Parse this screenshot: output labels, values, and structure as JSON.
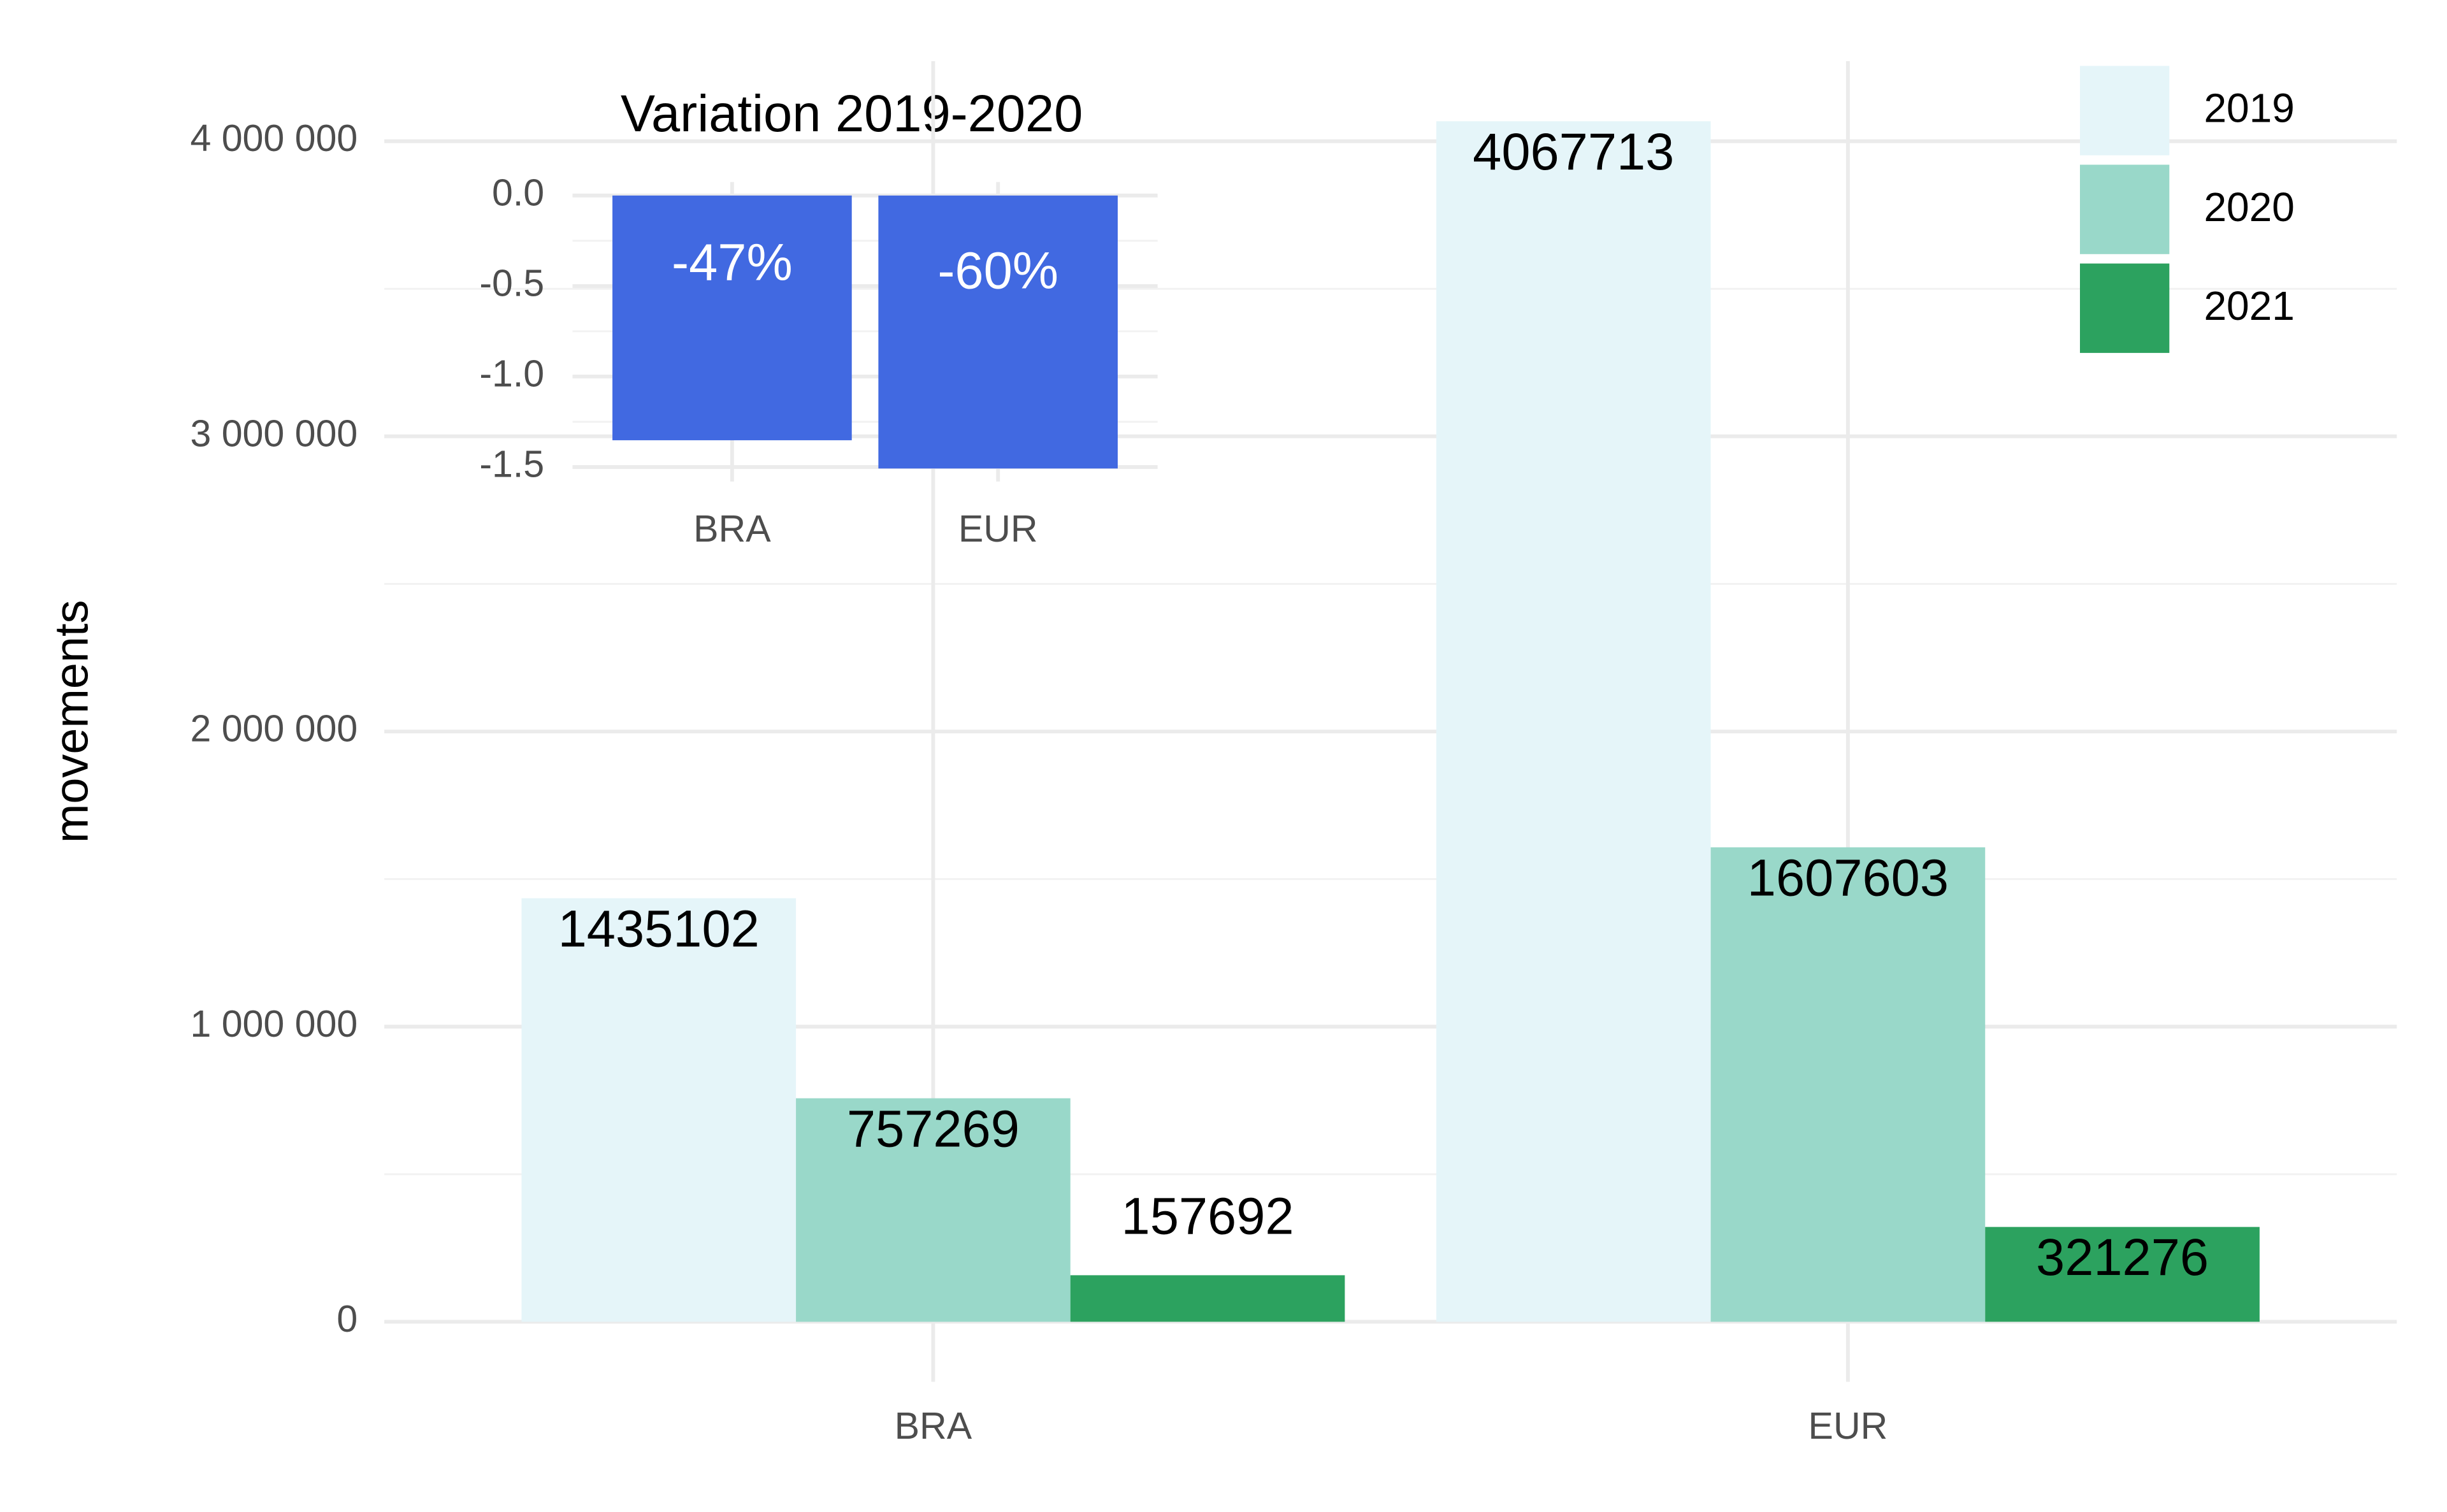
{
  "chart_data": [
    {
      "type": "bar",
      "y_label": "movements",
      "categories": [
        "BRA",
        "EUR"
      ],
      "series": [
        {
          "name": "2019",
          "color": "#e5f5f9",
          "values": [
            1435102,
            4067713
          ]
        },
        {
          "name": "2020",
          "color": "#99d8c9",
          "values": [
            757269,
            1607603
          ]
        },
        {
          "name": "2021",
          "color": "#2ca25f",
          "values": [
            157692,
            321276
          ]
        }
      ],
      "ylim": [
        -203386,
        4271099
      ],
      "yticks": [
        0,
        {
          "value": 1000000,
          "label": "1 000 000"
        },
        {
          "value": 2000000,
          "label": "2 000 000"
        },
        {
          "value": 3000000,
          "label": "3 000 000"
        },
        {
          "value": 4000000,
          "label": "4 000 000"
        }
      ],
      "minor_yticks": [
        500000,
        1500000,
        2500000,
        3500000
      ],
      "grid": true,
      "legend": "top-right"
    },
    {
      "type": "bar",
      "title": "Variation 2019-2020",
      "categories": [
        "BRA",
        "EUR"
      ],
      "values": [
        -1.352,
        -1.508
      ],
      "annotations": [
        "-47%",
        "-60%"
      ],
      "color": "#4169e1",
      "ylim": [
        -1.58,
        0.075
      ],
      "yticks": [
        {
          "value": 0,
          "label": "0.0"
        },
        -0.5,
        {
          "value": -1,
          "label": "-1.0"
        },
        -1.5
      ],
      "minor_yticks": [
        -0.25,
        -0.75,
        -1.25
      ],
      "grid": true
    }
  ]
}
